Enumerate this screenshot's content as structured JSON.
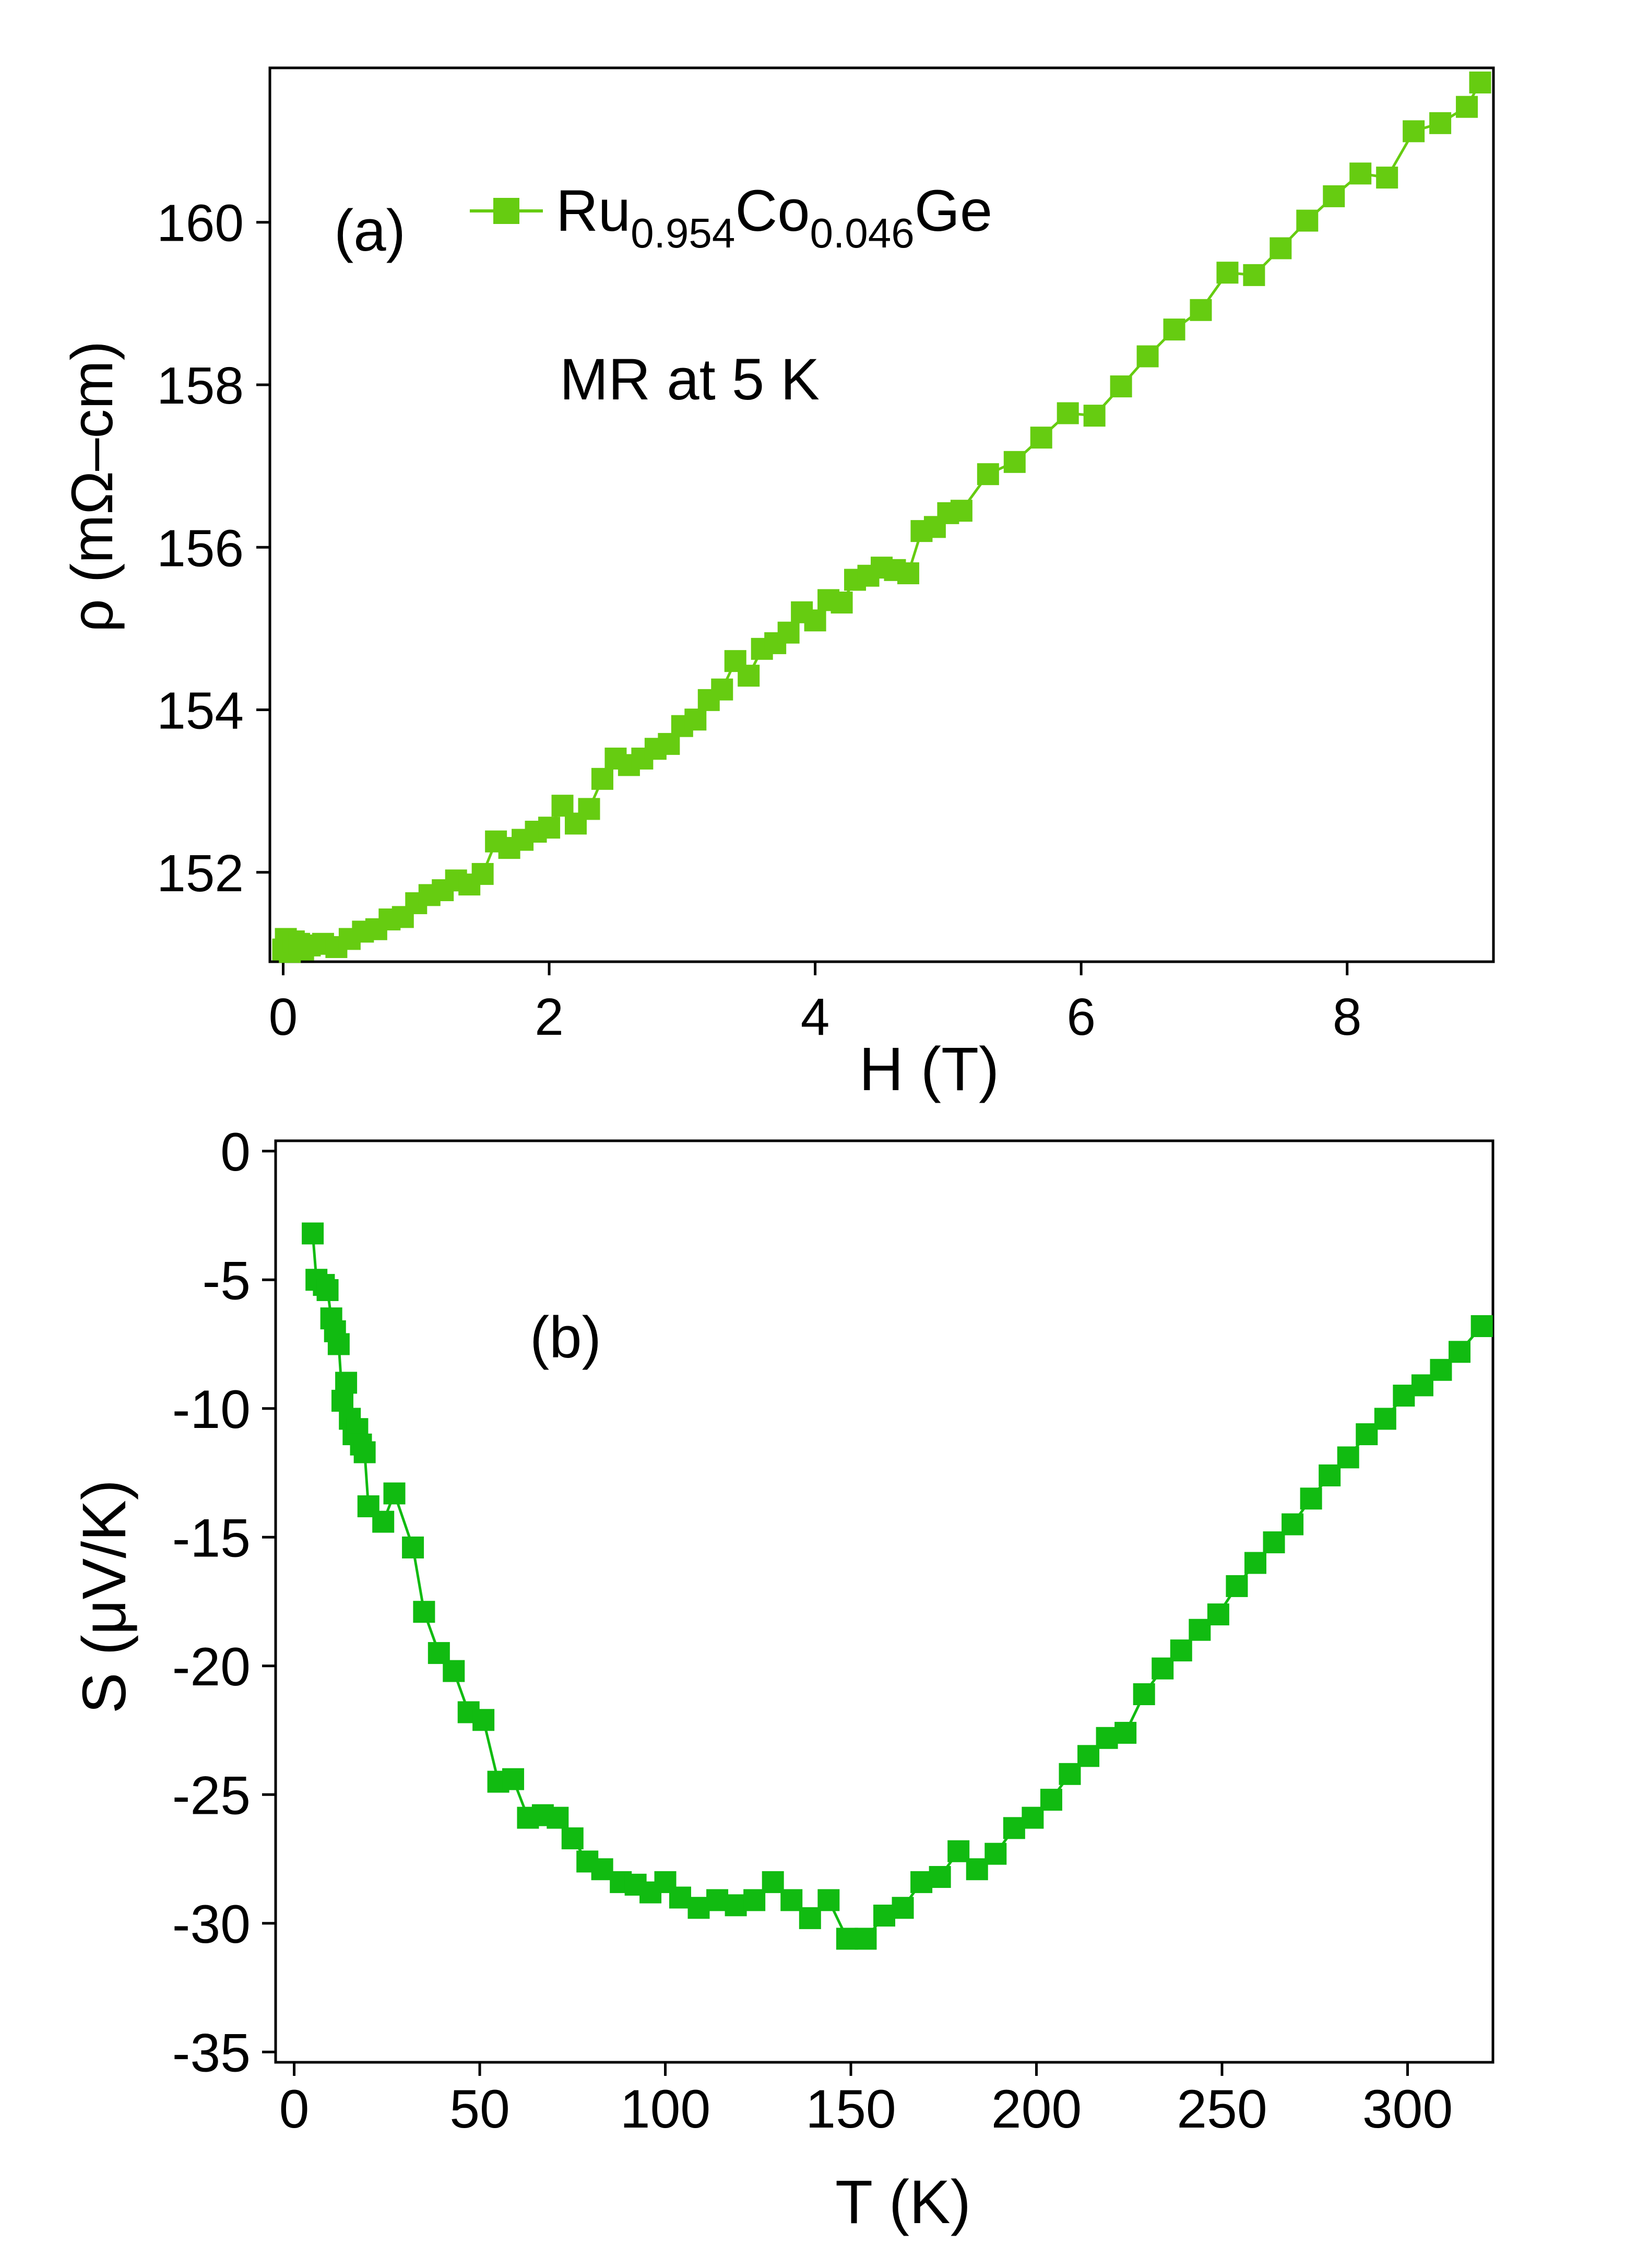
{
  "chart_data": [
    {
      "type": "line",
      "panel_label": "(a)",
      "annotation": "MR at 5 K",
      "xlabel": "H (T)",
      "ylabel": "ρ (mΩ–cm)",
      "xlim": [
        -0.1,
        9.1
      ],
      "ylim": [
        150.9,
        161.9
      ],
      "xticks": [
        0,
        2,
        4,
        6,
        8
      ],
      "yticks": [
        152,
        154,
        156,
        158,
        160
      ],
      "legend": {
        "base": "Ru",
        "sub1": "0.954",
        "mid": "Co",
        "sub2": "0.046",
        "tail": "Ge",
        "placement": "top-left"
      },
      "series": [
        {
          "name": "Ru0.954Co0.046Ge",
          "color": "#66cc11",
          "marker": "square",
          "x": [
            0.0,
            0.02,
            0.05,
            0.08,
            0.1,
            0.12,
            0.15,
            0.2,
            0.3,
            0.4,
            0.5,
            0.6,
            0.7,
            0.8,
            0.9,
            1.0,
            1.1,
            1.2,
            1.3,
            1.4,
            1.5,
            1.6,
            1.7,
            1.8,
            1.9,
            2.0,
            2.1,
            2.2,
            2.3,
            2.4,
            2.5,
            2.6,
            2.7,
            2.8,
            2.9,
            3.0,
            3.1,
            3.2,
            3.3,
            3.4,
            3.5,
            3.6,
            3.7,
            3.8,
            3.9,
            4.0,
            4.1,
            4.2,
            4.3,
            4.4,
            4.5,
            4.6,
            4.7,
            4.8,
            4.9,
            5.0,
            5.1,
            5.3,
            5.5,
            5.7,
            5.9,
            6.1,
            6.3,
            6.5,
            6.7,
            6.9,
            7.1,
            7.3,
            7.5,
            7.7,
            7.9,
            8.1,
            8.3,
            8.5,
            8.7,
            8.9,
            9.0
          ],
          "values": [
            151.05,
            151.18,
            151.02,
            151.15,
            151.08,
            151.12,
            151.05,
            151.1,
            151.12,
            151.08,
            151.18,
            151.27,
            151.3,
            151.42,
            151.45,
            151.62,
            151.72,
            151.78,
            151.9,
            151.85,
            151.98,
            152.38,
            152.3,
            152.4,
            152.5,
            152.55,
            152.82,
            152.6,
            152.78,
            153.15,
            153.4,
            153.32,
            153.4,
            153.52,
            153.58,
            153.8,
            153.88,
            154.12,
            154.25,
            154.6,
            154.42,
            154.75,
            154.82,
            154.95,
            155.2,
            155.1,
            155.35,
            155.32,
            155.6,
            155.65,
            155.75,
            155.72,
            155.68,
            156.2,
            156.25,
            156.42,
            156.45,
            156.9,
            157.05,
            157.35,
            157.65,
            157.62,
            157.98,
            158.35,
            158.68,
            158.92,
            159.38,
            159.35,
            159.68,
            160.02,
            160.32,
            160.6,
            160.55,
            161.12,
            161.22,
            161.42,
            161.72
          ]
        }
      ]
    },
    {
      "type": "line",
      "panel_label": "(b)",
      "xlabel": "T (K)",
      "ylabel": "S (μV/K)",
      "xlim": [
        -5,
        323
      ],
      "ylim": [
        -35.4,
        0.4
      ],
      "xticks": [
        0,
        50,
        100,
        150,
        200,
        250,
        300
      ],
      "yticks": [
        0,
        -5,
        -10,
        -15,
        -20,
        -25,
        -30,
        -35
      ],
      "series": [
        {
          "name": "S",
          "color": "#11bb11",
          "marker": "square",
          "x": [
            5,
            6,
            8,
            9,
            10,
            11,
            12,
            13,
            14,
            15,
            16,
            17,
            18,
            19,
            20,
            24,
            27,
            32,
            35,
            39,
            43,
            47,
            51,
            55,
            59,
            63,
            67,
            71,
            75,
            79,
            83,
            88,
            92,
            96,
            100,
            104,
            109,
            114,
            119,
            124,
            129,
            134,
            139,
            144,
            149,
            154,
            159,
            164,
            169,
            174,
            179,
            184,
            189,
            194,
            199,
            204,
            209,
            214,
            219,
            224,
            229,
            234,
            239,
            244,
            249,
            254,
            259,
            264,
            269,
            274,
            279,
            284,
            289,
            294,
            299,
            304,
            309,
            314,
            320
          ],
          "values": [
            -3.2,
            -5.0,
            -5.2,
            -5.4,
            -6.5,
            -7.0,
            -7.5,
            -9.7,
            -9.0,
            -10.4,
            -11.0,
            -10.8,
            -11.4,
            -11.7,
            -13.8,
            -14.4,
            -13.3,
            -15.4,
            -17.9,
            -19.5,
            -20.2,
            -21.8,
            -22.1,
            -24.5,
            -24.4,
            -25.9,
            -25.8,
            -25.9,
            -26.7,
            -27.6,
            -27.9,
            -28.4,
            -28.5,
            -28.8,
            -28.4,
            -29.0,
            -29.4,
            -29.1,
            -29.3,
            -29.1,
            -28.4,
            -29.1,
            -29.8,
            -29.1,
            -30.6,
            -30.6,
            -29.7,
            -29.4,
            -28.4,
            -28.2,
            -27.2,
            -27.9,
            -27.3,
            -26.3,
            -25.9,
            -25.2,
            -24.2,
            -23.5,
            -22.8,
            -22.6,
            -21.1,
            -20.1,
            -19.4,
            -18.6,
            -18.0,
            -16.9,
            -16.0,
            -15.2,
            -14.5,
            -13.5,
            -12.6,
            -11.9,
            -11.0,
            -10.4,
            -9.5,
            -9.1,
            -8.5,
            -7.8,
            -6.8
          ]
        }
      ]
    }
  ]
}
